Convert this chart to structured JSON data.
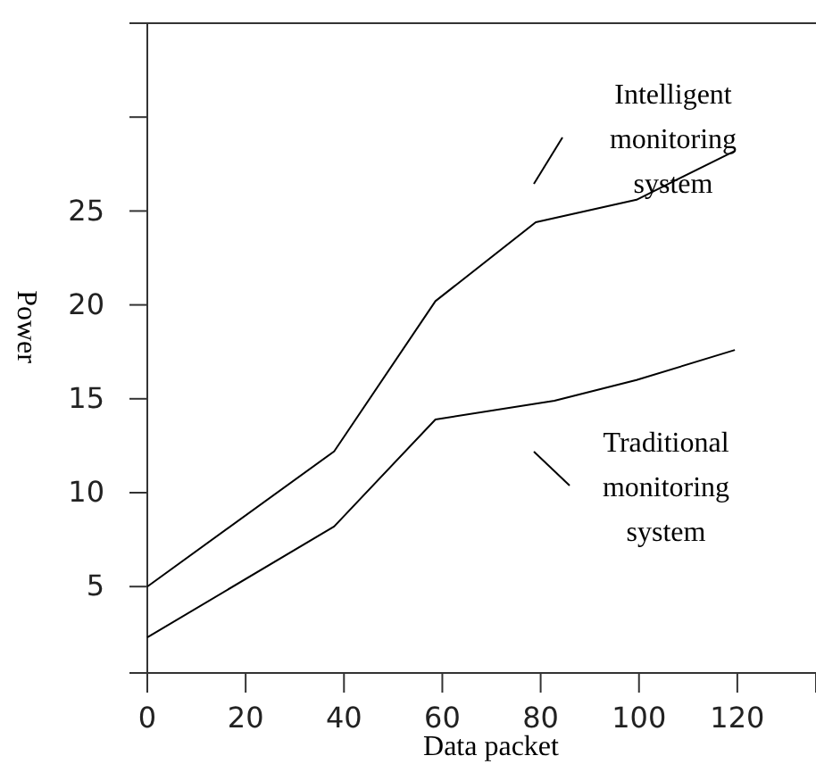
{
  "chart_data": {
    "type": "line",
    "xlabel": "Data packet",
    "ylabel": "Power",
    "xlim": [
      0,
      136
    ],
    "xticks": [
      0,
      20,
      40,
      60,
      80,
      100,
      120
    ],
    "ylim": [
      0.4,
      35
    ],
    "yticks": [
      5,
      10,
      15,
      20,
      25,
      {
        "value": 30,
        "label": null
      }
    ],
    "grid": false,
    "legend": "right",
    "marker": "none",
    "line_style": "solid",
    "series": [
      {
        "name": "Intelligent monitoring system",
        "color": "#000000",
        "x": [
          0,
          38,
          58.6,
          79,
          99.5,
          119.5
        ],
        "values": [
          5.0,
          12.2,
          20.2,
          24.4,
          25.6,
          28.2
        ]
      },
      {
        "name": "Traditional monitoring system",
        "color": "#000000",
        "x": [
          0,
          38,
          58.6,
          82.8,
          99.5,
          119.5
        ],
        "values": [
          2.3,
          8.2,
          13.9,
          14.9,
          16.0,
          17.6
        ]
      }
    ]
  }
}
